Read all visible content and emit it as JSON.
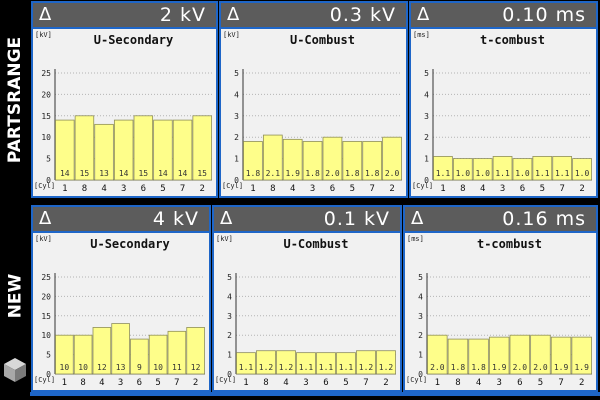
{
  "side_labels": {
    "top": "PARTSRANGE",
    "bottom": "NEW"
  },
  "colors": {
    "bar": "#fefe8a",
    "bar_stroke": "#8f8f5a",
    "header": "#5c5c5c",
    "frame": "#1e66c8",
    "plot_bg": "#f1f1f1",
    "grid": "#b4b4b4"
  },
  "icons": {
    "range_symbol": "delta-triangle-icon",
    "logo": "cube-logo-icon"
  },
  "panels": [
    {
      "id": "partsrange-u-secondary",
      "range_text": "2 kV",
      "delta_symbol": "Δ",
      "chart_data": {
        "type": "bar",
        "title": "U-Secondary",
        "ylabel": "[kV]",
        "xlabel": "[Cyl]",
        "categories": [
          "1",
          "8",
          "4",
          "3",
          "6",
          "5",
          "7",
          "2"
        ],
        "values": [
          14,
          15,
          13,
          14,
          15,
          14,
          14,
          15
        ],
        "value_labels": [
          "14",
          "15",
          "13",
          "14",
          "15",
          "14",
          "14",
          "15"
        ],
        "ylim": [
          0,
          25
        ],
        "yticks": [
          "0",
          "5",
          "10",
          "15",
          "20",
          "25"
        ],
        "grid": true
      }
    },
    {
      "id": "partsrange-u-combust",
      "range_text": "0.3 kV",
      "delta_symbol": "Δ",
      "chart_data": {
        "type": "bar",
        "title": "U-Combust",
        "ylabel": "[kV]",
        "xlabel": "[Cyl]",
        "categories": [
          "1",
          "8",
          "4",
          "3",
          "6",
          "5",
          "7",
          "2"
        ],
        "values": [
          1.8,
          2.1,
          1.9,
          1.8,
          2.0,
          1.8,
          1.8,
          2.0
        ],
        "value_labels": [
          "1.8",
          "2.1",
          "1.9",
          "1.8",
          "2.0",
          "1.8",
          "1.8",
          "2.0"
        ],
        "ylim": [
          0,
          5
        ],
        "yticks": [
          "0",
          "1",
          "2",
          "3",
          "4",
          "5"
        ],
        "grid": true
      }
    },
    {
      "id": "partsrange-t-combust",
      "range_text": "0.10 ms",
      "delta_symbol": "Δ",
      "chart_data": {
        "type": "bar",
        "title": "t-combust",
        "ylabel": "[ms]",
        "xlabel": "[Cyl]",
        "categories": [
          "1",
          "8",
          "4",
          "3",
          "6",
          "5",
          "7",
          "2"
        ],
        "values": [
          1.1,
          1.0,
          1.0,
          1.1,
          1.0,
          1.1,
          1.1,
          1.0
        ],
        "value_labels": [
          "1.1",
          "1.0",
          "1.0",
          "1.1",
          "1.0",
          "1.1",
          "1.1",
          "1.0"
        ],
        "ylim": [
          0,
          5
        ],
        "yticks": [
          "0",
          "1",
          "2",
          "3",
          "4",
          "5"
        ],
        "grid": true
      }
    },
    {
      "id": "new-u-secondary",
      "range_text": "4 kV",
      "delta_symbol": "Δ",
      "chart_data": {
        "type": "bar",
        "title": "U-Secondary",
        "ylabel": "[kV]",
        "xlabel": "[Cyl]",
        "categories": [
          "1",
          "8",
          "4",
          "3",
          "6",
          "5",
          "7",
          "2"
        ],
        "values": [
          10,
          10,
          12,
          13,
          9,
          10,
          11,
          12
        ],
        "value_labels": [
          "10",
          "10",
          "12",
          "13",
          "9",
          "10",
          "11",
          "12"
        ],
        "ylim": [
          0,
          25
        ],
        "yticks": [
          "0",
          "5",
          "10",
          "15",
          "20",
          "25"
        ],
        "grid": true
      }
    },
    {
      "id": "new-u-combust",
      "range_text": "0.1 kV",
      "delta_symbol": "Δ",
      "chart_data": {
        "type": "bar",
        "title": "U-Combust",
        "ylabel": "[kV]",
        "xlabel": "[Cyl]",
        "categories": [
          "1",
          "8",
          "4",
          "3",
          "6",
          "5",
          "7",
          "2"
        ],
        "values": [
          1.1,
          1.2,
          1.2,
          1.1,
          1.1,
          1.1,
          1.2,
          1.2
        ],
        "value_labels": [
          "1.1",
          "1.2",
          "1.2",
          "1.1",
          "1.1",
          "1.1",
          "1.2",
          "1.2"
        ],
        "ylim": [
          0,
          5
        ],
        "yticks": [
          "0",
          "1",
          "2",
          "3",
          "4",
          "5"
        ],
        "grid": true
      }
    },
    {
      "id": "new-t-combust",
      "range_text": "0.16 ms",
      "delta_symbol": "Δ",
      "chart_data": {
        "type": "bar",
        "title": "t-combust",
        "ylabel": "[ms]",
        "xlabel": "[Cyl]",
        "categories": [
          "1",
          "8",
          "4",
          "3",
          "6",
          "5",
          "7",
          "2"
        ],
        "values": [
          2.0,
          1.8,
          1.8,
          1.9,
          2.0,
          2.0,
          1.9,
          1.9
        ],
        "value_labels": [
          "2.0",
          "1.8",
          "1.8",
          "1.9",
          "2.0",
          "2.0",
          "1.9",
          "1.9"
        ],
        "ylim": [
          0,
          5
        ],
        "yticks": [
          "0",
          "1",
          "2",
          "3",
          "4",
          "5"
        ],
        "grid": true
      }
    }
  ]
}
